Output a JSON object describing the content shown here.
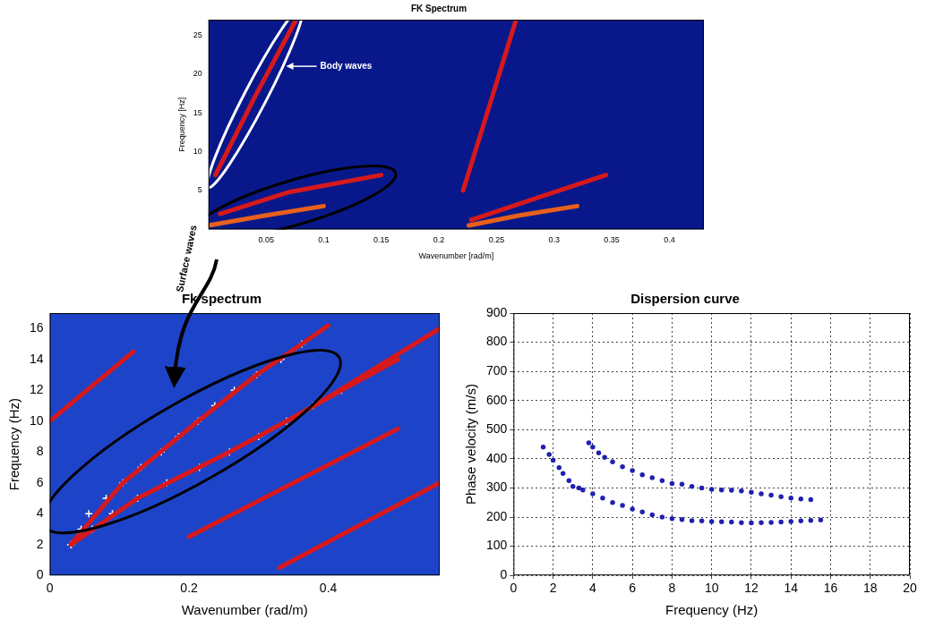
{
  "chart_data": [
    {
      "type": "line",
      "title": "FK Spectrum",
      "x_label": "Wavenumber [rad/m]",
      "y_label": "Frequency [Hz]",
      "xlim": [
        0,
        0.43
      ],
      "xticks": [
        0.05,
        0.1,
        0.15,
        0.2,
        0.25,
        0.3,
        0.35,
        0.4
      ],
      "ylim": [
        0,
        27
      ],
      "yticks": [
        5,
        10,
        15,
        20,
        25
      ],
      "grid": false,
      "annotations": [
        "Body waves",
        "Surface waves"
      ],
      "series": [
        {
          "color": "#d7191c",
          "x": [
            0.006,
            0.04,
            0.076
          ],
          "values": [
            7,
            17,
            27
          ]
        },
        {
          "color": "#d7191c",
          "x": [
            0.221,
            0.244,
            0.267
          ],
          "values": [
            5,
            16,
            27
          ]
        },
        {
          "color": "#d7191c",
          "x": [
            0.01,
            0.07,
            0.15
          ],
          "values": [
            2,
            4.8,
            7
          ]
        },
        {
          "color": "#e8601c",
          "x": [
            0,
            0.05,
            0.1
          ],
          "values": [
            0.5,
            1.8,
            3
          ]
        },
        {
          "color": "#d7191c",
          "x": [
            0.228,
            0.29,
            0.345
          ],
          "values": [
            1.2,
            4.3,
            7
          ]
        },
        {
          "color": "#e8601c",
          "x": [
            0.226,
            0.27,
            0.32
          ],
          "values": [
            0.5,
            1.8,
            3
          ]
        }
      ]
    },
    {
      "type": "line",
      "title": "Fk spectrum",
      "x_label": "Wavenumber (rad/m)",
      "y_label": "Frequency (Hz)",
      "xlim": [
        0,
        0.56
      ],
      "xticks": [
        0,
        0.2,
        0.4
      ],
      "ylim": [
        0,
        17
      ],
      "yticks": [
        0,
        2,
        4,
        6,
        8,
        10,
        12,
        14,
        16
      ],
      "grid": false,
      "series": [
        {
          "color": "#d7191c",
          "x": [
            0.03,
            0.105,
            0.213,
            0.297,
            0.362,
            0.4
          ],
          "values": [
            2,
            6,
            10,
            13,
            15,
            16.2
          ]
        },
        {
          "color": "#d7191c",
          "x": [
            0.031,
            0.126,
            0.258,
            0.34,
            0.419,
            0.5
          ],
          "values": [
            2,
            5,
            8,
            10,
            12,
            14
          ]
        },
        {
          "color": "#d7191c",
          "x": [
            0.2,
            0.5
          ],
          "values": [
            2.5,
            9.5
          ]
        },
        {
          "color": "#d7191c",
          "x": [
            0.33,
            0.56
          ],
          "values": [
            0.5,
            6
          ]
        },
        {
          "color": "#d7191c",
          "x": [
            0.38,
            0.56
          ],
          "values": [
            11,
            16
          ]
        },
        {
          "color": "#d7191c",
          "x": [
            0,
            0.12
          ],
          "values": [
            10,
            14.5
          ]
        },
        {
          "type": "scatter",
          "marker": "cross",
          "color": "#ffffff",
          "x": [
            0.03,
            0.045,
            0.056,
            0.081,
            0.105,
            0.131,
            0.16,
            0.185,
            0.213,
            0.237,
            0.265,
            0.297,
            0.332,
            0.362
          ],
          "values": [
            2,
            3,
            4,
            5,
            6,
            7,
            8,
            9,
            10,
            11,
            12,
            13,
            14,
            15
          ]
        },
        {
          "type": "scatter",
          "marker": "cross",
          "color": "#ffffff",
          "x": [
            0.031,
            0.061,
            0.09,
            0.126,
            0.168,
            0.215,
            0.258,
            0.3,
            0.34,
            0.378,
            0.419
          ],
          "values": [
            2,
            3,
            4,
            5,
            6,
            7,
            8,
            9,
            10,
            11,
            12
          ]
        }
      ]
    },
    {
      "type": "scatter",
      "title": "Dispersion curve",
      "x_label": "Frequency (Hz)",
      "y_label": "Phase velocity (m/s)",
      "xlim": [
        0,
        20
      ],
      "xticks": [
        0,
        2,
        4,
        6,
        8,
        10,
        12,
        14,
        16,
        18,
        20
      ],
      "ylim": [
        0,
        900
      ],
      "yticks": [
        0,
        100,
        200,
        300,
        400,
        500,
        600,
        700,
        800,
        900
      ],
      "grid": true,
      "marker": "circle",
      "series": [
        {
          "color": "#2020b0",
          "x": [
            1.5,
            1.8,
            2,
            2.3,
            2.5,
            2.8,
            3,
            3.3,
            3.5,
            4,
            4.5,
            5,
            5.5,
            6,
            6.5,
            7,
            7.5,
            8,
            8.5,
            9,
            9.5,
            10,
            10.5,
            11,
            11.5,
            12,
            12.5,
            13,
            13.5,
            14,
            14.5,
            15,
            15.5
          ],
          "values": [
            440,
            415,
            395,
            370,
            350,
            325,
            305,
            300,
            293,
            280,
            265,
            250,
            240,
            228,
            218,
            208,
            200,
            195,
            192,
            188,
            187,
            185,
            184,
            183,
            181,
            180,
            181,
            182,
            183,
            185,
            187,
            189,
            190
          ]
        },
        {
          "color": "#2020b0",
          "x": [
            3.8,
            4,
            4.3,
            4.6,
            5,
            5.5,
            6,
            6.5,
            7,
            7.5,
            8,
            8.5,
            9,
            9.5,
            10,
            10.5,
            11,
            11.5,
            12,
            12.5,
            13,
            13.5,
            14,
            14.5,
            15
          ],
          "values": [
            455,
            440,
            420,
            405,
            390,
            373,
            360,
            345,
            335,
            325,
            315,
            313,
            305,
            300,
            295,
            293,
            292,
            290,
            285,
            280,
            275,
            270,
            265,
            262,
            260
          ]
        }
      ]
    }
  ]
}
